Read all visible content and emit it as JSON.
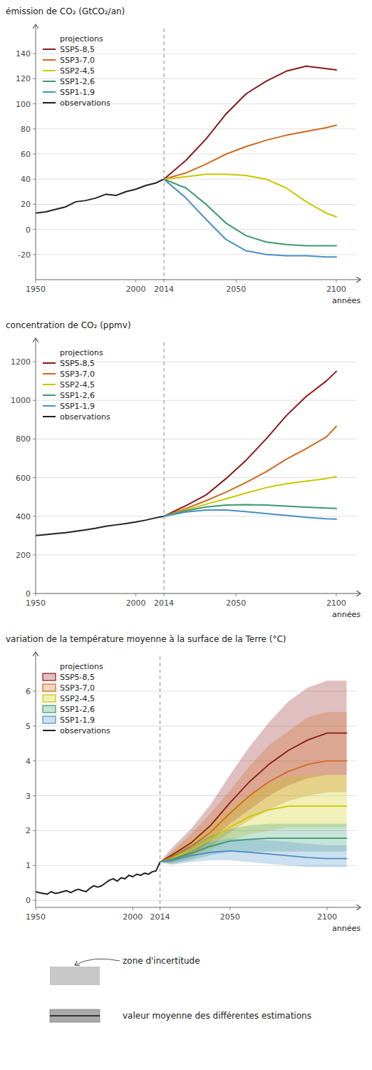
{
  "chart_data": [
    {
      "type": "line",
      "ylabel": "émission de CO₂ (GtCO₂/an)",
      "xlabel": "années",
      "annotations": [
        "projections"
      ],
      "xlim": [
        1950,
        2110
      ],
      "ylim": [
        -40,
        160
      ],
      "xticks": [
        1950,
        2000,
        2014,
        2050,
        2100
      ],
      "yticks": [
        -20,
        0,
        20,
        40,
        60,
        80,
        100,
        120,
        140
      ],
      "vlines": [
        2014
      ],
      "grid": true,
      "legend": "upper left",
      "series": [
        {
          "name": "SSP5-8,5",
          "color": "#8b1a1a",
          "x": [
            2014,
            2025,
            2035,
            2045,
            2055,
            2065,
            2075,
            2085,
            2095,
            2100
          ],
          "values": [
            40,
            55,
            72,
            92,
            108,
            118,
            126,
            130,
            128,
            127
          ]
        },
        {
          "name": "SSP3-7,0",
          "color": "#d2691e",
          "x": [
            2014,
            2025,
            2035,
            2045,
            2055,
            2065,
            2075,
            2085,
            2095,
            2100
          ],
          "values": [
            40,
            45,
            52,
            60,
            66,
            71,
            75,
            78,
            81,
            83
          ]
        },
        {
          "name": "SSP2-4,5",
          "color": "#c8c800",
          "x": [
            2014,
            2025,
            2035,
            2045,
            2055,
            2065,
            2075,
            2085,
            2095,
            2100
          ],
          "values": [
            40,
            42,
            44,
            44,
            43,
            40,
            33,
            22,
            13,
            10
          ]
        },
        {
          "name": "SSP1-2,6",
          "color": "#3a9a6e",
          "x": [
            2014,
            2025,
            2035,
            2045,
            2055,
            2065,
            2075,
            2085,
            2095,
            2100
          ],
          "values": [
            40,
            33,
            20,
            5,
            -5,
            -10,
            -12,
            -13,
            -13,
            -13
          ]
        },
        {
          "name": "SSP1-1,9",
          "color": "#4a90c4",
          "x": [
            2014,
            2025,
            2035,
            2045,
            2055,
            2065,
            2075,
            2085,
            2095,
            2100
          ],
          "values": [
            40,
            25,
            8,
            -8,
            -17,
            -20,
            -21,
            -21,
            -22,
            -22
          ]
        },
        {
          "name": "observations",
          "color": "#222222",
          "x": [
            1950,
            1955,
            1960,
            1965,
            1970,
            1975,
            1980,
            1985,
            1990,
            1995,
            2000,
            2005,
            2010,
            2014
          ],
          "values": [
            13,
            14,
            16,
            18,
            22,
            23,
            25,
            28,
            27,
            30,
            32,
            35,
            37,
            40
          ]
        }
      ]
    },
    {
      "type": "line",
      "ylabel": "concentration de CO₂ (ppmv)",
      "xlabel": "années",
      "annotations": [
        "projections"
      ],
      "xlim": [
        1950,
        2110
      ],
      "ylim": [
        0,
        1300
      ],
      "xticks": [
        1950,
        2000,
        2014,
        2050,
        2100
      ],
      "yticks": [
        0,
        200,
        400,
        600,
        800,
        1000,
        1200
      ],
      "vlines": [
        2014
      ],
      "grid": true,
      "legend": "upper left",
      "series": [
        {
          "name": "SSP5-8,5",
          "color": "#8b1a1a",
          "x": [
            2014,
            2025,
            2035,
            2045,
            2055,
            2065,
            2075,
            2085,
            2095,
            2100
          ],
          "values": [
            400,
            455,
            510,
            595,
            690,
            800,
            920,
            1020,
            1100,
            1150
          ]
        },
        {
          "name": "SSP3-7,0",
          "color": "#d2691e",
          "x": [
            2014,
            2025,
            2035,
            2045,
            2055,
            2065,
            2075,
            2085,
            2095,
            2100
          ],
          "values": [
            400,
            440,
            480,
            525,
            575,
            630,
            695,
            750,
            810,
            865
          ]
        },
        {
          "name": "SSP2-4,5",
          "color": "#c8c800",
          "x": [
            2014,
            2025,
            2035,
            2045,
            2055,
            2065,
            2075,
            2085,
            2095,
            2100
          ],
          "values": [
            400,
            432,
            462,
            490,
            520,
            548,
            568,
            582,
            595,
            605
          ]
        },
        {
          "name": "SSP1-2,6",
          "color": "#3a9a6e",
          "x": [
            2014,
            2025,
            2035,
            2045,
            2055,
            2065,
            2075,
            2085,
            2095,
            2100
          ],
          "values": [
            400,
            428,
            448,
            458,
            460,
            458,
            452,
            447,
            442,
            440
          ]
        },
        {
          "name": "SSP1-1,9",
          "color": "#4a90c4",
          "x": [
            2014,
            2025,
            2035,
            2045,
            2055,
            2065,
            2075,
            2085,
            2095,
            2100
          ],
          "values": [
            400,
            422,
            432,
            432,
            424,
            414,
            404,
            394,
            387,
            385
          ]
        },
        {
          "name": "observations",
          "color": "#222222",
          "x": [
            1950,
            1955,
            1960,
            1965,
            1970,
            1975,
            1980,
            1985,
            1990,
            1995,
            2000,
            2005,
            2010,
            2014
          ],
          "values": [
            300,
            305,
            310,
            315,
            322,
            330,
            338,
            348,
            355,
            362,
            370,
            380,
            392,
            400
          ]
        }
      ]
    },
    {
      "type": "line",
      "ylabel": "variation de la température moyenne à la surface de la Terre  (°C)",
      "xlabel": "années",
      "annotations": [
        "projections",
        "zone d'incertitude",
        "valeur moyenne des différentes estimations"
      ],
      "xlim": [
        1950,
        2115
      ],
      "ylim": [
        -0.2,
        7
      ],
      "xticks": [
        1950,
        2000,
        2014,
        2050,
        2100
      ],
      "yticks": [
        0,
        1,
        2,
        3,
        4,
        5,
        6
      ],
      "vlines": [
        2014
      ],
      "grid": true,
      "legend": "upper left",
      "series": [
        {
          "name": "SSP5-8,5",
          "color": "#8b1a1a",
          "x": [
            2014,
            2020,
            2030,
            2040,
            2050,
            2060,
            2070,
            2080,
            2090,
            2100,
            2110
          ],
          "values": [
            1.1,
            1.3,
            1.65,
            2.15,
            2.8,
            3.4,
            3.9,
            4.3,
            4.6,
            4.8,
            4.8
          ],
          "low": [
            1.1,
            1.1,
            1.3,
            1.7,
            2.2,
            2.6,
            3.0,
            3.3,
            3.5,
            3.6,
            3.6
          ],
          "high": [
            1.1,
            1.5,
            2.05,
            2.75,
            3.6,
            4.4,
            5.1,
            5.7,
            6.1,
            6.3,
            6.3
          ]
        },
        {
          "name": "SSP3-7,0",
          "color": "#d2691e",
          "x": [
            2014,
            2020,
            2030,
            2040,
            2050,
            2060,
            2070,
            2080,
            2090,
            2100,
            2110
          ],
          "values": [
            1.1,
            1.25,
            1.55,
            1.95,
            2.5,
            3.0,
            3.4,
            3.7,
            3.9,
            4.0,
            4.0
          ],
          "low": [
            1.1,
            1.1,
            1.25,
            1.55,
            1.95,
            2.3,
            2.6,
            2.85,
            3.0,
            3.1,
            3.1
          ],
          "high": [
            1.1,
            1.4,
            1.9,
            2.5,
            3.15,
            3.85,
            4.45,
            4.85,
            5.25,
            5.4,
            5.4
          ]
        },
        {
          "name": "SSP2-4,5",
          "color": "#c8c800",
          "x": [
            2014,
            2020,
            2030,
            2040,
            2050,
            2060,
            2070,
            2080,
            2090,
            2100,
            2110
          ],
          "values": [
            1.1,
            1.2,
            1.45,
            1.75,
            2.1,
            2.4,
            2.6,
            2.7,
            2.7,
            2.7,
            2.7
          ],
          "low": [
            1.1,
            1.05,
            1.2,
            1.45,
            1.7,
            1.9,
            2.0,
            2.1,
            2.1,
            2.1,
            2.1
          ],
          "high": [
            1.1,
            1.35,
            1.75,
            2.15,
            2.65,
            3.05,
            3.35,
            3.55,
            3.6,
            3.6,
            3.6
          ]
        },
        {
          "name": "SSP1-2,6",
          "color": "#3a9a6e",
          "x": [
            2014,
            2020,
            2030,
            2040,
            2050,
            2060,
            2070,
            2080,
            2090,
            2100,
            2110
          ],
          "values": [
            1.1,
            1.18,
            1.35,
            1.55,
            1.7,
            1.75,
            1.78,
            1.78,
            1.78,
            1.78,
            1.78
          ],
          "low": [
            1.1,
            1.05,
            1.15,
            1.3,
            1.4,
            1.4,
            1.4,
            1.4,
            1.4,
            1.4,
            1.4
          ],
          "high": [
            1.1,
            1.32,
            1.6,
            1.85,
            2.05,
            2.15,
            2.2,
            2.2,
            2.2,
            2.2,
            2.2
          ]
        },
        {
          "name": "SSP1-1,9",
          "color": "#4a90c4",
          "x": [
            2014,
            2020,
            2030,
            2040,
            2050,
            2060,
            2070,
            2080,
            2090,
            2100,
            2110
          ],
          "values": [
            1.1,
            1.15,
            1.28,
            1.38,
            1.42,
            1.38,
            1.33,
            1.28,
            1.23,
            1.2,
            1.2
          ],
          "low": [
            1.1,
            1.02,
            1.1,
            1.15,
            1.15,
            1.1,
            1.05,
            1.0,
            0.95,
            0.95,
            0.95
          ],
          "high": [
            1.1,
            1.28,
            1.5,
            1.68,
            1.78,
            1.75,
            1.72,
            1.68,
            1.62,
            1.58,
            1.58
          ]
        },
        {
          "name": "observations",
          "color": "#222222",
          "x": [
            1950,
            1952,
            1954,
            1956,
            1958,
            1960,
            1962,
            1964,
            1966,
            1968,
            1970,
            1972,
            1974,
            1976,
            1978,
            1980,
            1982,
            1984,
            1986,
            1988,
            1990,
            1992,
            1994,
            1996,
            1998,
            2000,
            2002,
            2004,
            2006,
            2008,
            2010,
            2012,
            2014
          ],
          "values": [
            0.25,
            0.22,
            0.2,
            0.18,
            0.25,
            0.2,
            0.22,
            0.25,
            0.28,
            0.22,
            0.28,
            0.32,
            0.28,
            0.25,
            0.35,
            0.42,
            0.38,
            0.42,
            0.5,
            0.58,
            0.62,
            0.55,
            0.65,
            0.62,
            0.72,
            0.68,
            0.75,
            0.72,
            0.78,
            0.75,
            0.82,
            0.85,
            1.1
          ]
        }
      ]
    }
  ]
}
